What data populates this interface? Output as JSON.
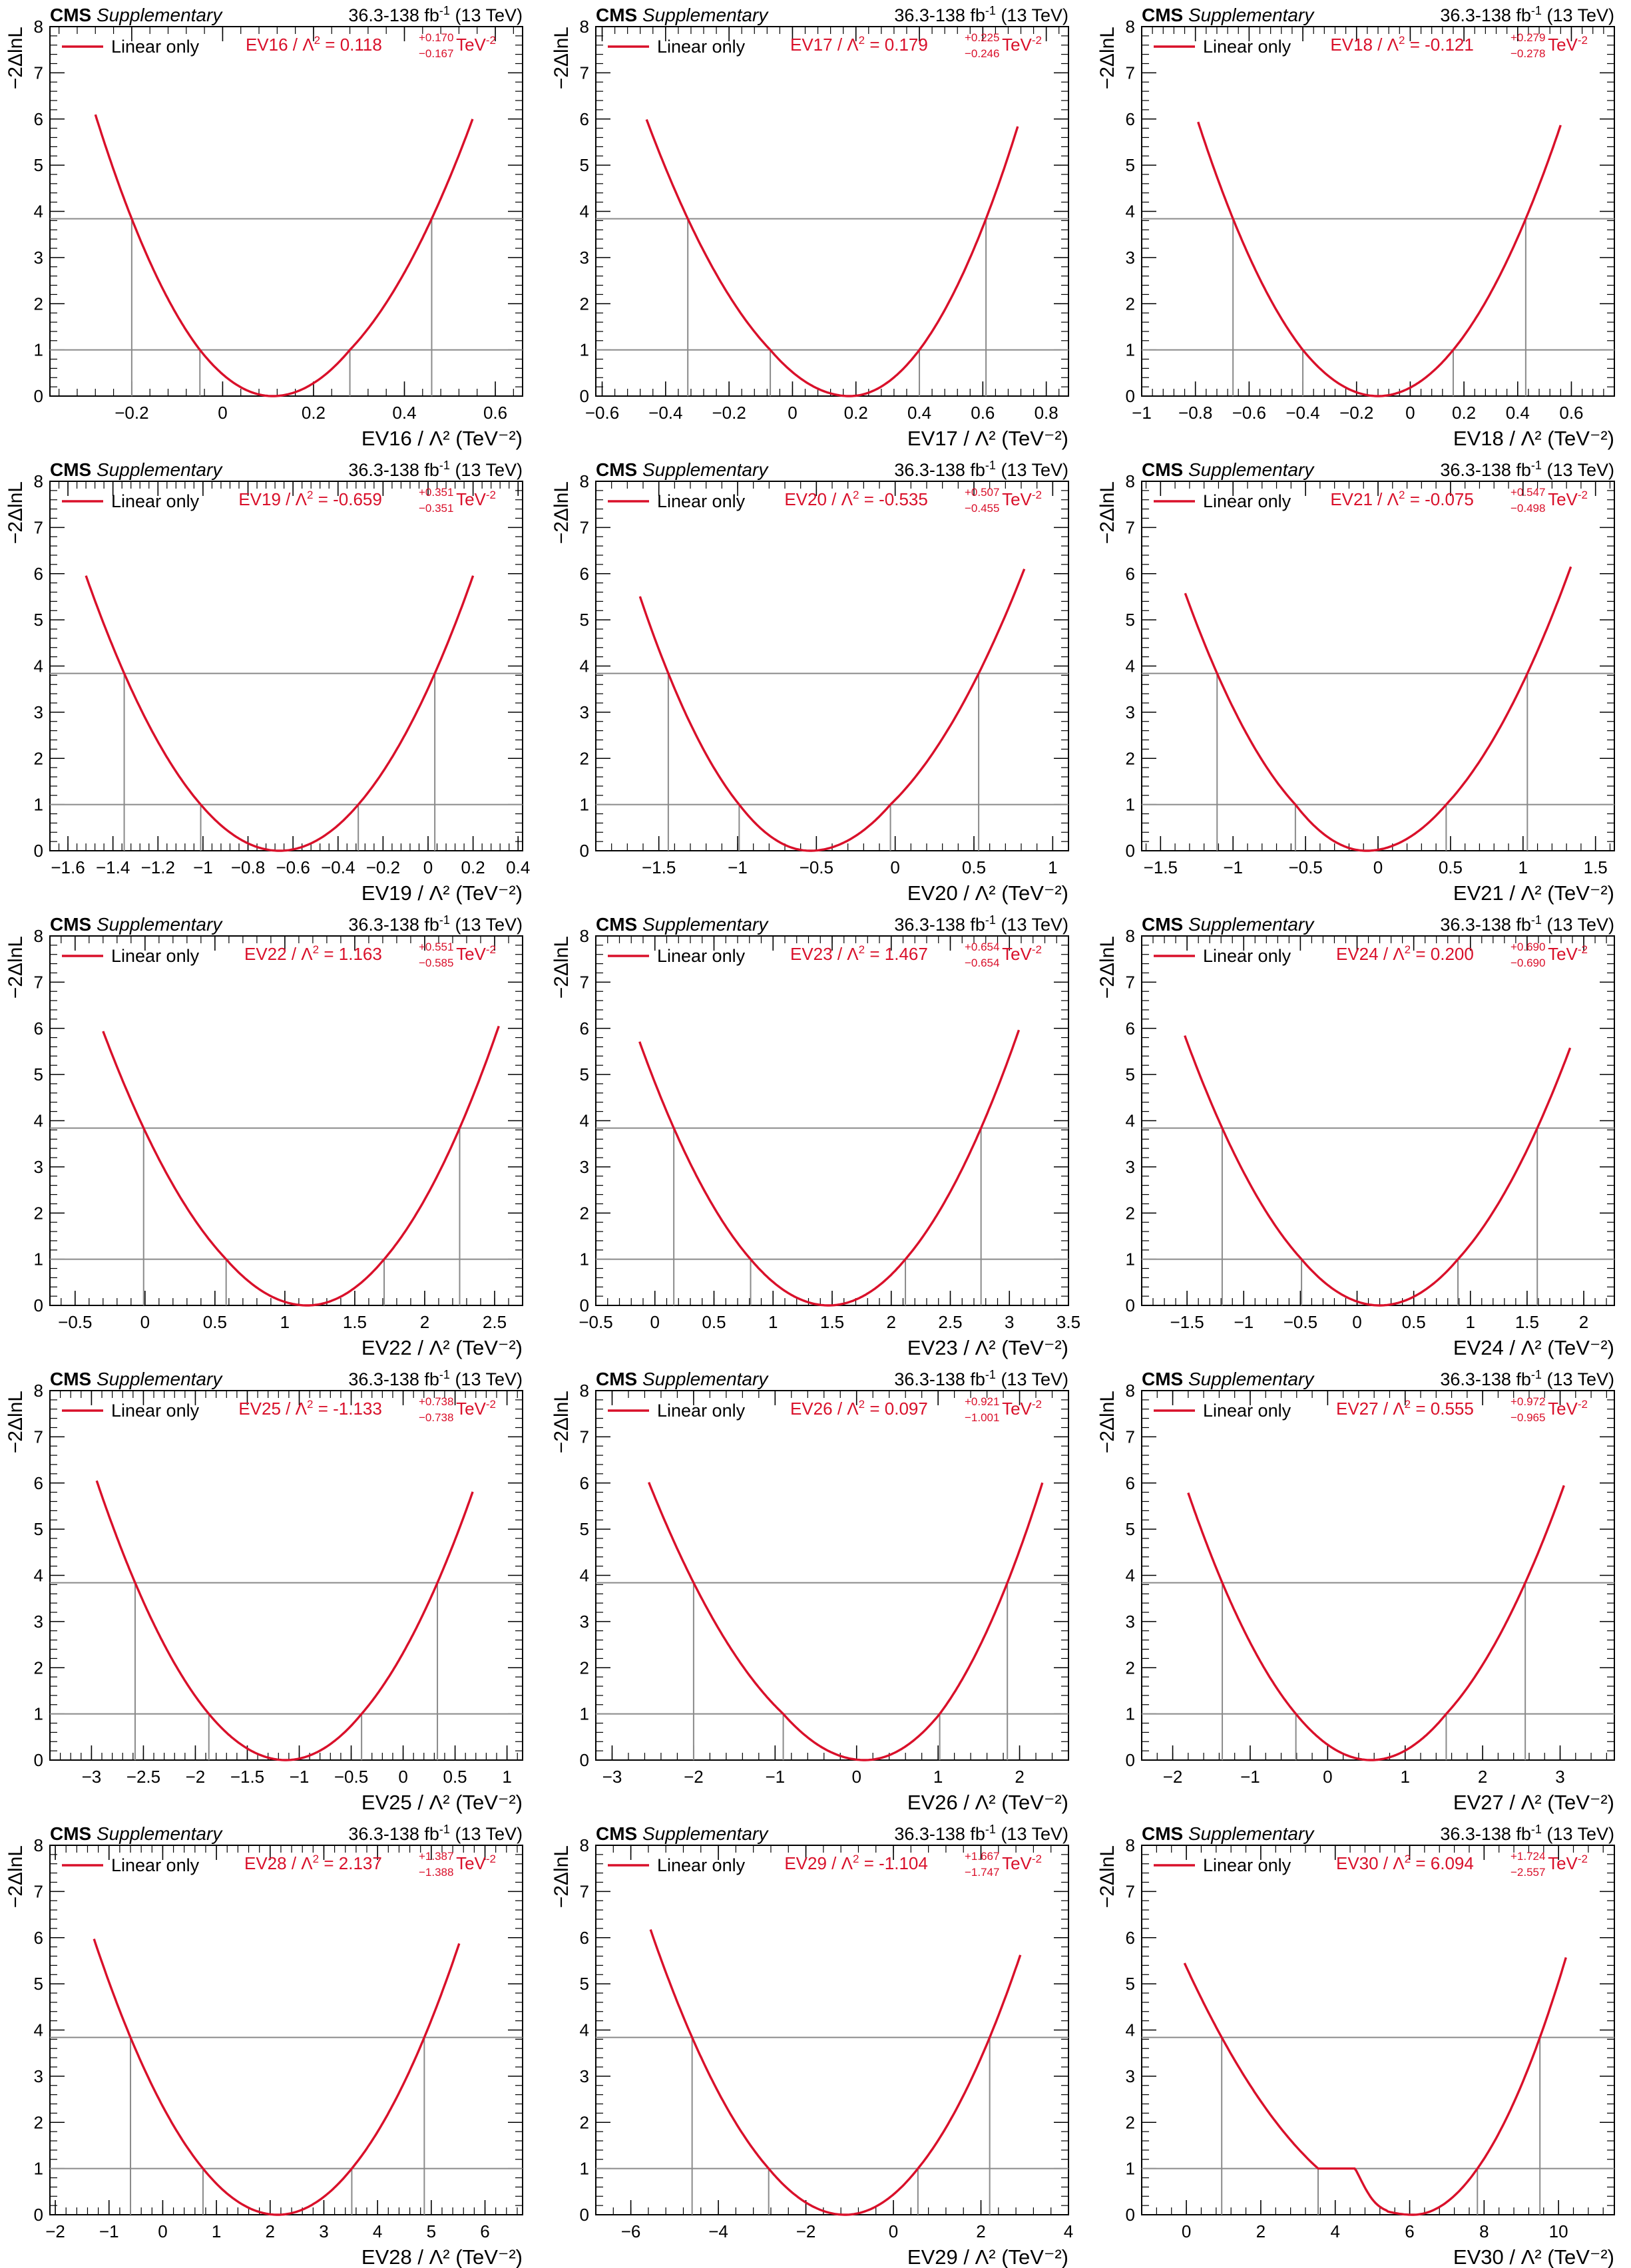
{
  "header": {
    "experiment": "CMS",
    "tag": "Supplementary",
    "lumi": "36.3-138 fb",
    "lumi_sup": "-1",
    "energy": " (13 TeV)"
  },
  "ylabel": "−2ΔlnL",
  "legend_label": "Linear only",
  "colors": {
    "curve": "#d9102a",
    "ref_line": "#8a8a8a",
    "axis": "#000000"
  },
  "chart_data": [
    {
      "type": "line",
      "name": "EV16",
      "best": "0.118",
      "up": "+0.170",
      "dn": "−0.167",
      "xlim": [
        -0.38,
        0.66
      ],
      "ticks": [
        -0.2,
        0,
        0.2,
        0.4,
        0.6
      ],
      "tick_labels": [
        "−0.2",
        "0",
        "0.2",
        "0.4",
        "0.6"
      ],
      "xmin": -0.28,
      "xmax": 0.55,
      "min": 0.11,
      "cross1": [
        -0.05,
        0.28
      ],
      "cross384": [
        -0.2,
        0.46
      ],
      "ylim": [
        0,
        8
      ],
      "yticks": [
        0,
        1,
        2,
        3,
        4,
        5,
        6,
        7,
        8
      ],
      "ref_lines": [
        1,
        3.84
      ],
      "xlabel": "EV16 / Λ² (TeV⁻²)"
    },
    {
      "type": "line",
      "name": "EV17",
      "best": "0.179",
      "up": "+0.225",
      "dn": "−0.246",
      "xlim": [
        -0.62,
        0.87
      ],
      "ticks": [
        -0.6,
        -0.4,
        -0.2,
        0,
        0.2,
        0.4,
        0.6,
        0.8
      ],
      "tick_labels": [
        "−0.6",
        "−0.4",
        "−0.2",
        "0",
        "0.2",
        "0.4",
        "0.6",
        "0.8"
      ],
      "xmin": -0.46,
      "xmax": 0.71,
      "min": 0.18,
      "cross1": [
        -0.07,
        0.4
      ],
      "cross384": [
        -0.33,
        0.61
      ],
      "ylim": [
        0,
        8
      ],
      "yticks": [
        0,
        1,
        2,
        3,
        4,
        5,
        6,
        7,
        8
      ],
      "ref_lines": [
        1,
        3.84
      ],
      "xlabel": "EV17 / Λ² (TeV⁻²)"
    },
    {
      "type": "line",
      "name": "EV18",
      "best": "-0.121",
      "up": "+0.279",
      "dn": "−0.278",
      "xlim": [
        -1.0,
        0.76
      ],
      "ticks": [
        -1,
        -0.8,
        -0.6,
        -0.4,
        -0.2,
        0,
        0.2,
        0.4,
        0.6
      ],
      "tick_labels": [
        "−1",
        "−0.8",
        "−0.6",
        "−0.4",
        "−0.2",
        "0",
        "0.2",
        "0.4",
        "0.6"
      ],
      "xmin": -0.79,
      "xmax": 0.56,
      "min": -0.12,
      "cross1": [
        -0.4,
        0.16
      ],
      "cross384": [
        -0.66,
        0.43
      ],
      "ylim": [
        0,
        8
      ],
      "yticks": [
        0,
        1,
        2,
        3,
        4,
        5,
        6,
        7,
        8
      ],
      "ref_lines": [
        1,
        3.84
      ],
      "xlabel": "EV18 / Λ² (TeV⁻²)"
    },
    {
      "type": "line",
      "name": "EV19",
      "best": "-0.659",
      "up": "+0.351",
      "dn": "−0.351",
      "xlim": [
        -1.68,
        0.42
      ],
      "ticks": [
        -1.6,
        -1.4,
        -1.2,
        -1,
        -0.8,
        -0.6,
        -0.4,
        -0.2,
        0,
        0.2,
        0.4
      ],
      "tick_labels": [
        "−1.6",
        "−1.4",
        "−1.2",
        "−1",
        "−0.8",
        "−0.6",
        "−0.4",
        "−0.2",
        "0",
        "0.2",
        "0.4"
      ],
      "xmin": -1.52,
      "xmax": 0.2,
      "min": -0.66,
      "cross1": [
        -1.01,
        -0.31
      ],
      "cross384": [
        -1.35,
        0.03
      ],
      "ylim": [
        0,
        8
      ],
      "yticks": [
        0,
        1,
        2,
        3,
        4,
        5,
        6,
        7,
        8
      ],
      "ref_lines": [
        1,
        3.84
      ],
      "xlabel": "EV19 / Λ² (TeV⁻²)"
    },
    {
      "type": "line",
      "name": "EV20",
      "best": "-0.535",
      "up": "+0.507",
      "dn": "−0.455",
      "xlim": [
        -1.9,
        1.1
      ],
      "ticks": [
        -1.5,
        -1,
        -0.5,
        0,
        0.5,
        1
      ],
      "tick_labels": [
        "−1.5",
        "−1",
        "−0.5",
        "0",
        "0.5",
        "1"
      ],
      "xmin": -1.62,
      "xmax": 0.82,
      "min": -0.54,
      "cross1": [
        -0.99,
        -0.03
      ],
      "cross384": [
        -1.44,
        0.53
      ],
      "ylim": [
        0,
        8
      ],
      "yticks": [
        0,
        1,
        2,
        3,
        4,
        5,
        6,
        7,
        8
      ],
      "ref_lines": [
        1,
        3.84
      ],
      "xlabel": "EV20 / Λ² (TeV⁻²)"
    },
    {
      "type": "line",
      "name": "EV21",
      "best": "-0.075",
      "up": "+0.547",
      "dn": "−0.498",
      "xlim": [
        -1.63,
        1.63
      ],
      "ticks": [
        -1.5,
        -1,
        -0.5,
        0,
        0.5,
        1,
        1.5
      ],
      "tick_labels": [
        "−1.5",
        "−1",
        "−0.5",
        "0",
        "0.5",
        "1",
        "1.5"
      ],
      "xmin": -1.33,
      "xmax": 1.33,
      "min": -0.08,
      "cross1": [
        -0.57,
        0.47
      ],
      "cross384": [
        -1.11,
        1.03
      ],
      "ylim": [
        0,
        8
      ],
      "yticks": [
        0,
        1,
        2,
        3,
        4,
        5,
        6,
        7,
        8
      ],
      "ref_lines": [
        1,
        3.84
      ],
      "xlabel": "EV21 / Λ² (TeV⁻²)"
    },
    {
      "type": "line",
      "name": "EV22",
      "best": "1.163",
      "up": "+0.551",
      "dn": "−0.585",
      "xlim": [
        -0.68,
        2.7
      ],
      "ticks": [
        -0.5,
        0,
        0.5,
        1,
        1.5,
        2,
        2.5
      ],
      "tick_labels": [
        "−0.5",
        "0",
        "0.5",
        "1",
        "1.5",
        "2",
        "2.5"
      ],
      "xmin": -0.3,
      "xmax": 2.53,
      "min": 1.16,
      "cross1": [
        0.58,
        1.71
      ],
      "cross384": [
        -0.01,
        2.25
      ],
      "ylim": [
        0,
        8
      ],
      "yticks": [
        0,
        1,
        2,
        3,
        4,
        5,
        6,
        7,
        8
      ],
      "ref_lines": [
        1,
        3.84
      ],
      "xlabel": "EV22 / Λ² (TeV⁻²)"
    },
    {
      "type": "line",
      "name": "EV23",
      "best": "1.467",
      "up": "+0.654",
      "dn": "−0.654",
      "xlim": [
        -0.5,
        3.5
      ],
      "ticks": [
        -0.5,
        0,
        0.5,
        1,
        1.5,
        2,
        2.5,
        3,
        3.5
      ],
      "tick_labels": [
        "−0.5",
        "0",
        "0.5",
        "1",
        "1.5",
        "2",
        "2.5",
        "3",
        "3.5"
      ],
      "xmin": -0.13,
      "xmax": 3.08,
      "min": 1.47,
      "cross1": [
        0.81,
        2.12
      ],
      "cross384": [
        0.16,
        2.76
      ],
      "ylim": [
        0,
        8
      ],
      "yticks": [
        0,
        1,
        2,
        3,
        4,
        5,
        6,
        7,
        8
      ],
      "ref_lines": [
        1,
        3.84
      ],
      "xlabel": "EV23 / Λ² (TeV⁻²)"
    },
    {
      "type": "line",
      "name": "EV24",
      "best": "0.200",
      "up": "+0.690",
      "dn": "−0.690",
      "xlim": [
        -1.9,
        2.27
      ],
      "ticks": [
        -1.5,
        -1,
        -0.5,
        0,
        0.5,
        1,
        1.5,
        2
      ],
      "tick_labels": [
        "−1.5",
        "−1",
        "−0.5",
        "0",
        "0.5",
        "1",
        "1.5",
        "2"
      ],
      "xmin": -1.52,
      "xmax": 1.88,
      "min": 0.2,
      "cross1": [
        -0.49,
        0.89
      ],
      "cross384": [
        -1.19,
        1.59
      ],
      "ylim": [
        0,
        8
      ],
      "yticks": [
        0,
        1,
        2,
        3,
        4,
        5,
        6,
        7,
        8
      ],
      "ref_lines": [
        1,
        3.84
      ],
      "xlabel": "EV24 / Λ² (TeV⁻²)"
    },
    {
      "type": "line",
      "name": "EV25",
      "best": "-1.133",
      "up": "+0.738",
      "dn": "−0.738",
      "xlim": [
        -3.4,
        1.15
      ],
      "ticks": [
        -3,
        -2.5,
        -2,
        -1.5,
        -1,
        -0.5,
        0,
        0.5,
        1
      ],
      "tick_labels": [
        "−3",
        "−2.5",
        "−2",
        "−1.5",
        "−1",
        "−0.5",
        "0",
        "0.5",
        "1"
      ],
      "xmin": -2.95,
      "xmax": 0.67,
      "min": -1.13,
      "cross1": [
        -1.87,
        -0.4
      ],
      "cross384": [
        -2.58,
        0.33
      ],
      "ylim": [
        0,
        8
      ],
      "yticks": [
        0,
        1,
        2,
        3,
        4,
        5,
        6,
        7,
        8
      ],
      "ref_lines": [
        1,
        3.84
      ],
      "xlabel": "EV25 / Λ² (TeV⁻²)"
    },
    {
      "type": "line",
      "name": "EV26",
      "best": "0.097",
      "up": "+0.921",
      "dn": "−1.001",
      "xlim": [
        -3.2,
        2.6
      ],
      "ticks": [
        -3,
        -2,
        -1,
        0,
        1,
        2
      ],
      "tick_labels": [
        "−3",
        "−2",
        "−1",
        "0",
        "1",
        "2"
      ],
      "xmin": -2.55,
      "xmax": 2.28,
      "min": 0.1,
      "cross1": [
        -0.9,
        1.02
      ],
      "cross384": [
        -2.0,
        1.85
      ],
      "ylim": [
        0,
        8
      ],
      "yticks": [
        0,
        1,
        2,
        3,
        4,
        5,
        6,
        7,
        8
      ],
      "ref_lines": [
        1,
        3.84
      ],
      "xlabel": "EV26 / Λ² (TeV⁻²)"
    },
    {
      "type": "line",
      "name": "EV27",
      "best": "0.555",
      "up": "+0.972",
      "dn": "−0.965",
      "xlim": [
        -2.4,
        3.7
      ],
      "ticks": [
        -2,
        -1,
        0,
        1,
        2,
        3
      ],
      "tick_labels": [
        "−2",
        "−1",
        "0",
        "1",
        "2",
        "3"
      ],
      "xmin": -1.8,
      "xmax": 3.05,
      "min": 0.56,
      "cross1": [
        -0.41,
        1.53
      ],
      "cross384": [
        -1.36,
        2.55
      ],
      "ylim": [
        0,
        8
      ],
      "yticks": [
        0,
        1,
        2,
        3,
        4,
        5,
        6,
        7,
        8
      ],
      "ref_lines": [
        1,
        3.84
      ],
      "xlabel": "EV27 / Λ² (TeV⁻²)"
    },
    {
      "type": "line",
      "name": "EV28",
      "best": "2.137",
      "up": "+1.387",
      "dn": "−1.388",
      "xlim": [
        -2.1,
        6.7
      ],
      "ticks": [
        -2,
        -1,
        0,
        1,
        2,
        3,
        4,
        5,
        6
      ],
      "tick_labels": [
        "−2",
        "−1",
        "0",
        "1",
        "2",
        "3",
        "4",
        "5",
        "6"
      ],
      "xmin": -1.28,
      "xmax": 5.52,
      "min": 2.14,
      "cross1": [
        0.75,
        3.52
      ],
      "cross384": [
        -0.6,
        4.87
      ],
      "ylim": [
        0,
        8
      ],
      "yticks": [
        0,
        1,
        2,
        3,
        4,
        5,
        6,
        7,
        8
      ],
      "ref_lines": [
        1,
        3.84
      ],
      "xlabel": "EV28 / Λ² (TeV⁻²)"
    },
    {
      "type": "line",
      "name": "EV29",
      "best": "-1.104",
      "up": "+1.667",
      "dn": "−1.747",
      "xlim": [
        -6.8,
        4.0
      ],
      "ticks": [
        -6,
        -4,
        -2,
        0,
        2,
        4
      ],
      "tick_labels": [
        "−6",
        "−4",
        "−2",
        "0",
        "2",
        "4"
      ],
      "xmin": -5.55,
      "xmax": 2.9,
      "min": -1.1,
      "cross1": [
        -2.85,
        0.56
      ],
      "cross384": [
        -4.6,
        2.2
      ],
      "ylim": [
        0,
        8
      ],
      "yticks": [
        0,
        1,
        2,
        3,
        4,
        5,
        6,
        7,
        8
      ],
      "ref_lines": [
        1,
        3.84
      ],
      "xlabel": "EV29 / Λ² (TeV⁻²)"
    },
    {
      "type": "line",
      "name": "EV30",
      "best": "6.094",
      "up": "+1.724",
      "dn": "−2.557",
      "xlim": [
        -1.2,
        11.5
      ],
      "ticks": [
        0,
        2,
        4,
        6,
        8,
        10
      ],
      "tick_labels": [
        "0",
        "2",
        "4",
        "6",
        "8",
        "10"
      ],
      "xmin": -0.05,
      "xmax": 10.2,
      "min": 6.09,
      "cross1": [
        3.54,
        7.82
      ],
      "cross384": [
        0.95,
        9.5
      ],
      "shoulder": true,
      "ylim": [
        0,
        8
      ],
      "yticks": [
        0,
        1,
        2,
        3,
        4,
        5,
        6,
        7,
        8
      ],
      "ref_lines": [
        1,
        3.84
      ],
      "xlabel": "EV30 / Λ² (TeV⁻²)"
    }
  ]
}
